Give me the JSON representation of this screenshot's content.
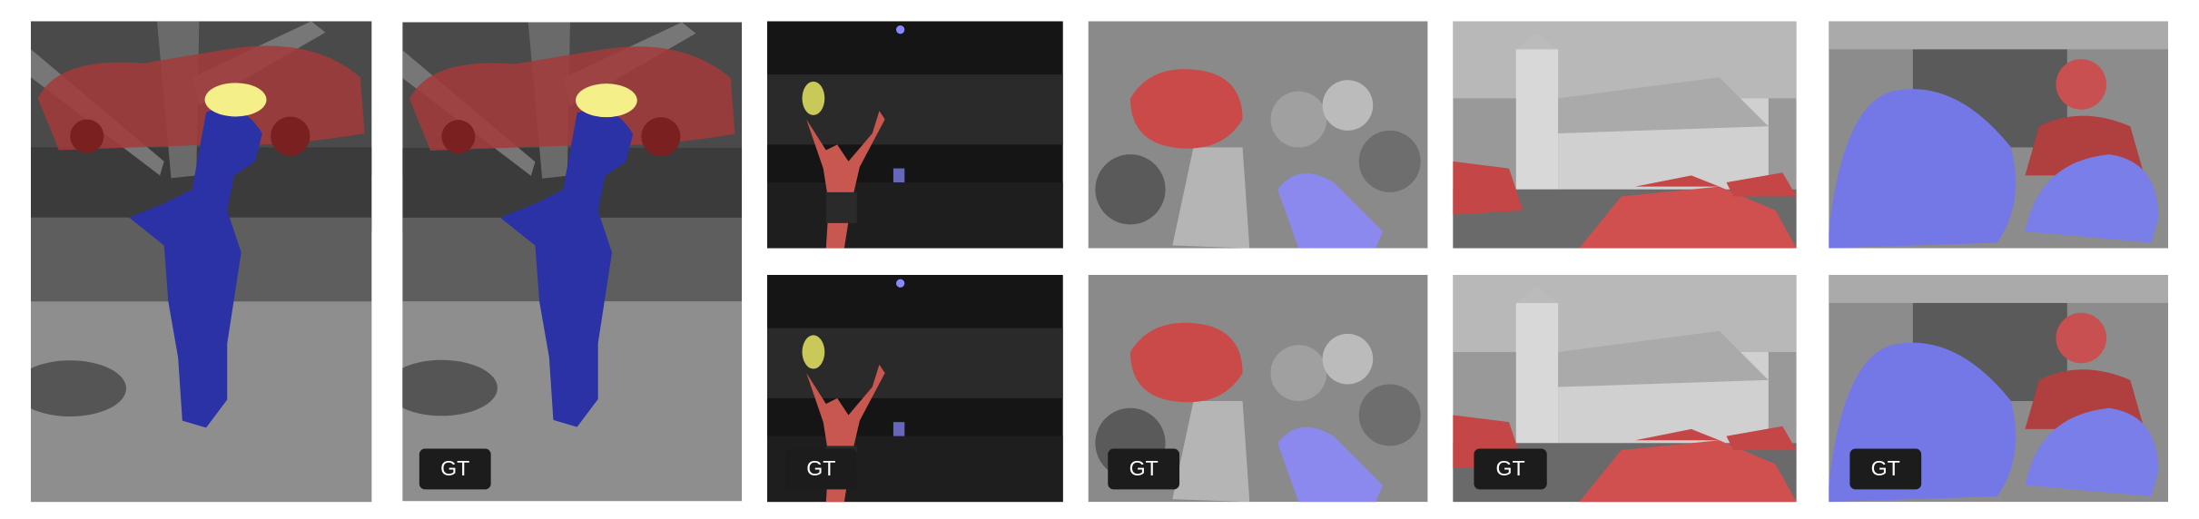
{
  "panels": [
    {
      "badge": "GT"
    },
    {
      "badge": "GT"
    },
    {
      "badge": "GT"
    },
    {
      "badge": "GT"
    },
    {
      "badge": "GT"
    }
  ]
}
